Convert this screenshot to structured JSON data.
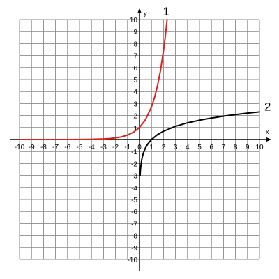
{
  "chart_data": {
    "type": "line",
    "title": "",
    "xlabel": "x",
    "ylabel": "y",
    "xlim": [
      -10,
      10
    ],
    "ylim": [
      -10,
      10
    ],
    "grid": true,
    "x_ticks": [
      -10,
      -9,
      -8,
      -7,
      -6,
      -5,
      -4,
      -3,
      -2,
      -1,
      0,
      1,
      2,
      3,
      4,
      5,
      6,
      7,
      8,
      9,
      10
    ],
    "y_ticks": [
      -10,
      -9,
      -8,
      -7,
      -6,
      -5,
      -4,
      -3,
      -2,
      -1,
      1,
      2,
      3,
      4,
      5,
      6,
      7,
      8,
      9,
      10
    ],
    "series": [
      {
        "label": "1",
        "color": "#e0201b",
        "x": [
          -10,
          -8,
          -6,
          -5,
          -4,
          -3,
          -2.5,
          -2,
          -1.5,
          -1,
          -0.5,
          0,
          0.5,
          1,
          1.25,
          1.5,
          1.75,
          2,
          2.15,
          2.3
        ],
        "y": [
          0,
          0,
          0,
          0.01,
          0.02,
          0.05,
          0.08,
          0.14,
          0.22,
          0.37,
          0.61,
          1,
          1.65,
          2.72,
          3.49,
          4.48,
          5.75,
          7.39,
          8.58,
          10
        ]
      },
      {
        "label": "2",
        "color": "#000000",
        "x": [
          0.05,
          0.08,
          0.12,
          0.2,
          0.3,
          0.5,
          0.7,
          1,
          1.5,
          2,
          3,
          4,
          5,
          6,
          7,
          8,
          9,
          10
        ],
        "y": [
          -3,
          -2.53,
          -2.12,
          -1.61,
          -1.2,
          -0.69,
          -0.36,
          0,
          0.41,
          0.69,
          1.1,
          1.39,
          1.61,
          1.79,
          1.95,
          2.08,
          2.2,
          2.3
        ]
      }
    ]
  }
}
